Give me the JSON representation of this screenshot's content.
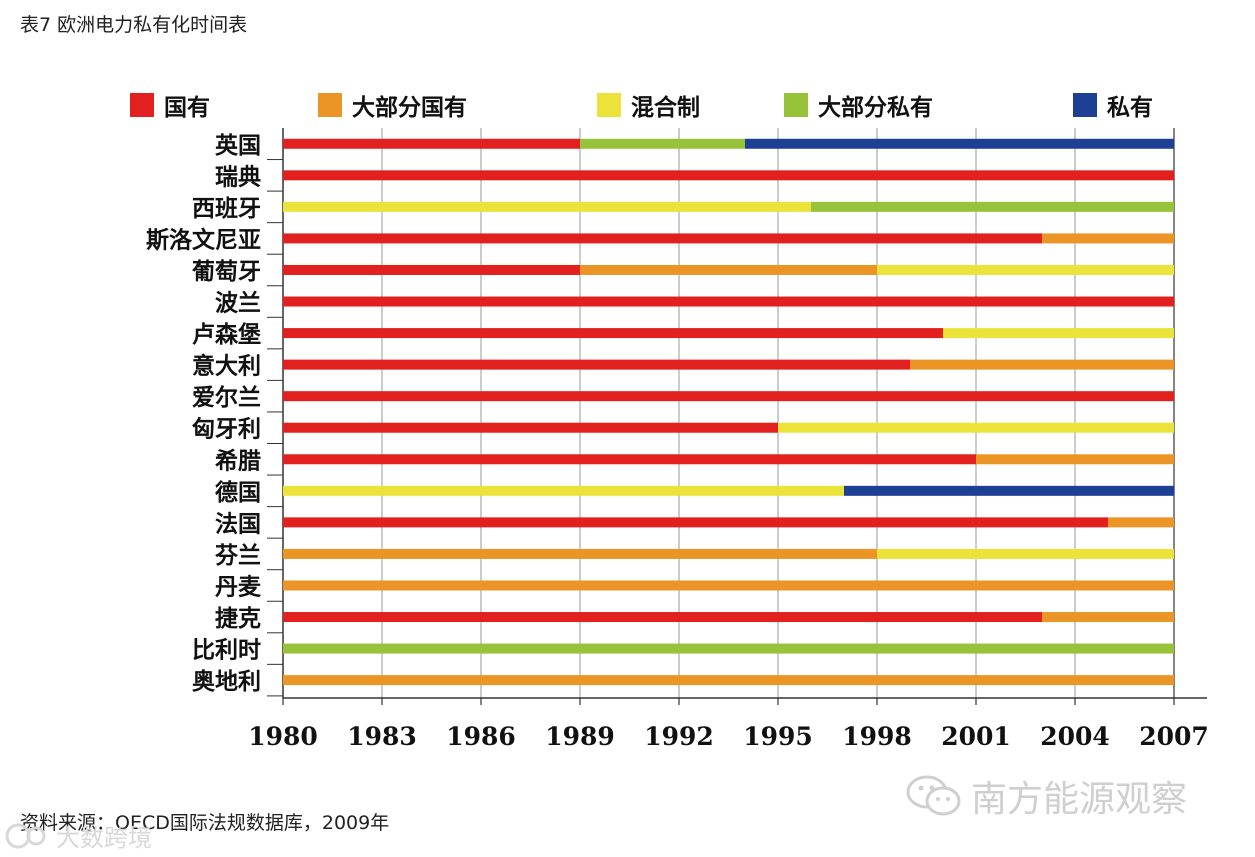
{
  "header": {
    "title": "表7  欧洲电力私有化时间表"
  },
  "footer": {
    "source": "资料来源：OECD国际法规数据库，2009年"
  },
  "watermarks": {
    "right": "南方能源观察",
    "left": "大数跨境"
  },
  "colors": {
    "国有": "#e1201f",
    "大部分国有": "#eb9526",
    "混合制": "#ebe33a",
    "大部分私有": "#97c33b",
    "私有": "#1d3f94",
    "grid": "#9a9a9a",
    "axis": "#333333"
  },
  "chart_data": {
    "type": "bar",
    "orientation": "horizontal-timeline",
    "x_ticks": [
      1980,
      1983,
      1986,
      1989,
      1992,
      1995,
      1998,
      2001,
      2004,
      2007
    ],
    "xlim": [
      1980,
      2007
    ],
    "grid": true,
    "legend": [
      "国有",
      "大部分国有",
      "混合制",
      "大部分私有",
      "私有"
    ],
    "legend_placement": "top",
    "countries": [
      {
        "name": "英国",
        "segments": [
          {
            "status": "国有",
            "start": 1980,
            "end": 1989
          },
          {
            "status": "大部分私有",
            "start": 1989,
            "end": 1994
          },
          {
            "status": "私有",
            "start": 1994,
            "end": 2007
          }
        ]
      },
      {
        "name": "瑞典",
        "segments": [
          {
            "status": "国有",
            "start": 1980,
            "end": 2007
          }
        ]
      },
      {
        "name": "西班牙",
        "segments": [
          {
            "status": "混合制",
            "start": 1980,
            "end": 1996
          },
          {
            "status": "大部分私有",
            "start": 1996,
            "end": 2007
          }
        ]
      },
      {
        "name": "斯洛文尼亚",
        "segments": [
          {
            "status": "国有",
            "start": 1980,
            "end": 2003
          },
          {
            "status": "大部分国有",
            "start": 2003,
            "end": 2007
          }
        ]
      },
      {
        "name": "葡萄牙",
        "segments": [
          {
            "status": "国有",
            "start": 1980,
            "end": 1989
          },
          {
            "status": "大部分国有",
            "start": 1989,
            "end": 1998
          },
          {
            "status": "混合制",
            "start": 1998,
            "end": 2007
          }
        ]
      },
      {
        "name": "波兰",
        "segments": [
          {
            "status": "国有",
            "start": 1980,
            "end": 2007
          }
        ]
      },
      {
        "name": "卢森堡",
        "segments": [
          {
            "status": "国有",
            "start": 1980,
            "end": 2000
          },
          {
            "status": "混合制",
            "start": 2000,
            "end": 2007
          }
        ]
      },
      {
        "name": "意大利",
        "segments": [
          {
            "status": "国有",
            "start": 1980,
            "end": 1999
          },
          {
            "status": "大部分国有",
            "start": 1999,
            "end": 2007
          }
        ]
      },
      {
        "name": "爱尔兰",
        "segments": [
          {
            "status": "国有",
            "start": 1980,
            "end": 2007
          }
        ]
      },
      {
        "name": "匈牙利",
        "segments": [
          {
            "status": "国有",
            "start": 1980,
            "end": 1995
          },
          {
            "status": "混合制",
            "start": 1995,
            "end": 2007
          }
        ]
      },
      {
        "name": "希腊",
        "segments": [
          {
            "status": "国有",
            "start": 1980,
            "end": 2001
          },
          {
            "status": "大部分国有",
            "start": 2001,
            "end": 2007
          }
        ]
      },
      {
        "name": "德国",
        "segments": [
          {
            "status": "混合制",
            "start": 1980,
            "end": 1997
          },
          {
            "status": "私有",
            "start": 1997,
            "end": 2007
          }
        ]
      },
      {
        "name": "法国",
        "segments": [
          {
            "status": "国有",
            "start": 1980,
            "end": 2005
          },
          {
            "status": "大部分国有",
            "start": 2005,
            "end": 2007
          }
        ]
      },
      {
        "name": "芬兰",
        "segments": [
          {
            "status": "大部分国有",
            "start": 1980,
            "end": 1998
          },
          {
            "status": "混合制",
            "start": 1998,
            "end": 2007
          }
        ]
      },
      {
        "name": "丹麦",
        "segments": [
          {
            "status": "大部分国有",
            "start": 1980,
            "end": 2007
          }
        ]
      },
      {
        "name": "捷克",
        "segments": [
          {
            "status": "国有",
            "start": 1980,
            "end": 2003
          },
          {
            "status": "大部分国有",
            "start": 2003,
            "end": 2007
          }
        ]
      },
      {
        "name": "比利时",
        "segments": [
          {
            "status": "大部分私有",
            "start": 1980,
            "end": 2007
          }
        ]
      },
      {
        "name": "奥地利",
        "segments": [
          {
            "status": "大部分国有",
            "start": 1980,
            "end": 2007
          }
        ]
      }
    ]
  }
}
